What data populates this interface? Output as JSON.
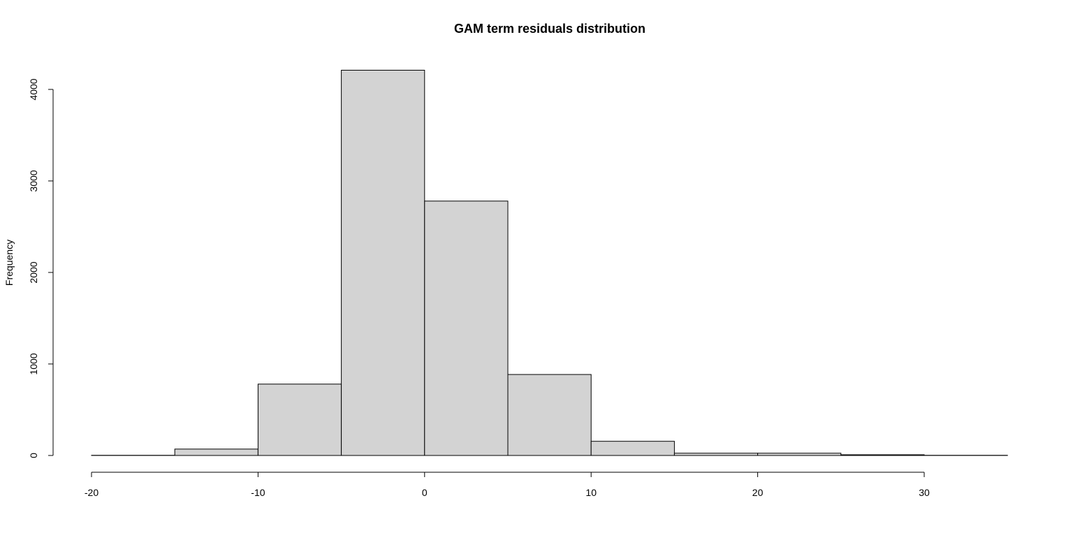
{
  "chart_data": {
    "type": "bar",
    "title": "GAM term residuals distribution",
    "xlabel": "",
    "ylabel": "Frequency",
    "bins": [
      {
        "from": -20,
        "to": -15,
        "value": 2
      },
      {
        "from": -15,
        "to": -10,
        "value": 70
      },
      {
        "from": -10,
        "to": -5,
        "value": 780
      },
      {
        "from": -5,
        "to": 0,
        "value": 4210
      },
      {
        "from": 0,
        "to": 5,
        "value": 2780
      },
      {
        "from": 5,
        "to": 10,
        "value": 885
      },
      {
        "from": 10,
        "to": 15,
        "value": 155
      },
      {
        "from": 15,
        "to": 20,
        "value": 25
      },
      {
        "from": 20,
        "to": 25,
        "value": 25
      },
      {
        "from": 25,
        "to": 30,
        "value": 8
      },
      {
        "from": 30,
        "to": 35,
        "value": 2
      }
    ],
    "xlim": [
      -20,
      35
    ],
    "ylim": [
      0,
      4210
    ],
    "x_ticks": [
      -20,
      -10,
      0,
      10,
      20,
      30
    ],
    "y_ticks": [
      0,
      1000,
      2000,
      3000,
      4000
    ],
    "grid": false,
    "legend": "none",
    "bar_color": "#d3d3d3",
    "edge_color": "#000000"
  }
}
